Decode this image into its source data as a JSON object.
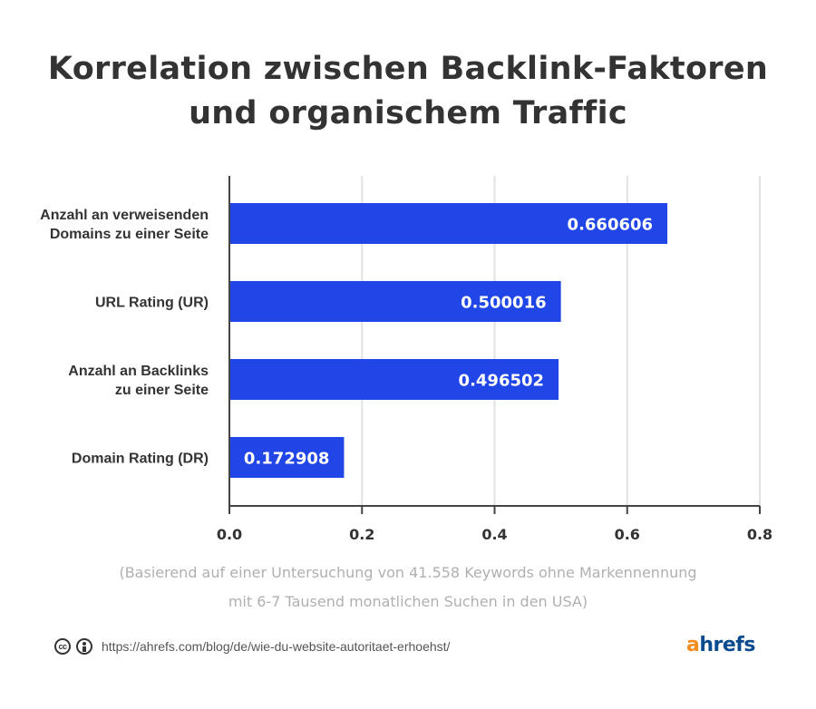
{
  "title_lines": [
    "Korrelation zwischen Backlink-Faktoren",
    "und organischem Traffic"
  ],
  "chart_data": {
    "type": "bar",
    "orientation": "horizontal",
    "title": "Korrelation zwischen Backlink-Faktoren und organischem Traffic",
    "categories": [
      [
        "Anzahl an verweisenden",
        "Domains zu einer Seite"
      ],
      [
        "URL Rating (UR)"
      ],
      [
        "Anzahl an Backlinks",
        "zu einer Seite"
      ],
      [
        "Domain Rating (DR)"
      ]
    ],
    "values": [
      0.660606,
      0.500016,
      0.496502,
      0.172908
    ],
    "value_labels": [
      "0.660606",
      "0.500016",
      "0.496502",
      "0.172908"
    ],
    "xlabel": "",
    "ylabel": "",
    "xlim": [
      0,
      0.8
    ],
    "xticks": [
      0.0,
      0.2,
      0.4,
      0.6,
      0.8
    ],
    "xtick_labels": [
      "0.0",
      "0.2",
      "0.4",
      "0.6",
      "0.8"
    ],
    "grid": true,
    "bar_color": "#2146e8",
    "legend": "none"
  },
  "notes": [
    "(Basierend auf einer Untersuchung von 41.558 Keywords ohne Markennennung",
    "mit 6-7 Tausend monatlichen Suchen in den USA)"
  ],
  "footer": {
    "license_icons": [
      "cc-icon",
      "attribution-icon"
    ],
    "cc_text": "cc",
    "url": "https://ahrefs.com/blog/de/wie-du-website-autoritaet-erhoehst/"
  },
  "logo": {
    "first": "a",
    "rest": "hrefs",
    "first_color": "#f28c1e",
    "rest_color": "#0a4a8f"
  }
}
